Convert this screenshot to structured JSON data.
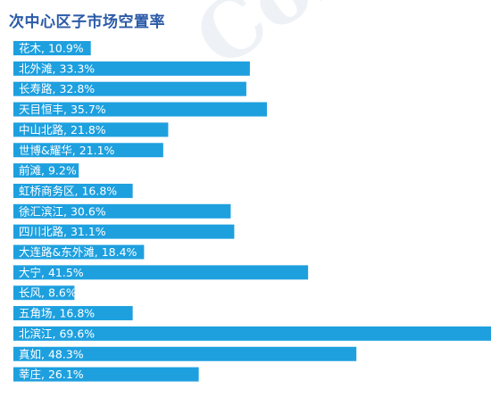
{
  "chart_data": {
    "type": "bar",
    "title": "次中心区子市场空置率",
    "watermark_text": "Coll",
    "categories": [
      "花木",
      "北外滩",
      "长寿路",
      "天目恒丰",
      "中山北路",
      "世博&耀华",
      "前滩",
      "虹桥商务区",
      "徐汇滨江",
      "四川北路",
      "大连路&东外滩",
      "大宁",
      "长风",
      "五角场",
      "北滨江",
      "真如",
      "莘庄"
    ],
    "values": [
      10.9,
      33.3,
      32.8,
      35.7,
      21.8,
      21.1,
      9.2,
      16.8,
      30.6,
      31.1,
      18.4,
      41.5,
      8.6,
      16.8,
      69.6,
      48.3,
      26.1
    ],
    "value_suffix": "%",
    "bar_color": "#1ea0df",
    "label_color": "#ffffff",
    "title_color": "#2b5aa8"
  }
}
